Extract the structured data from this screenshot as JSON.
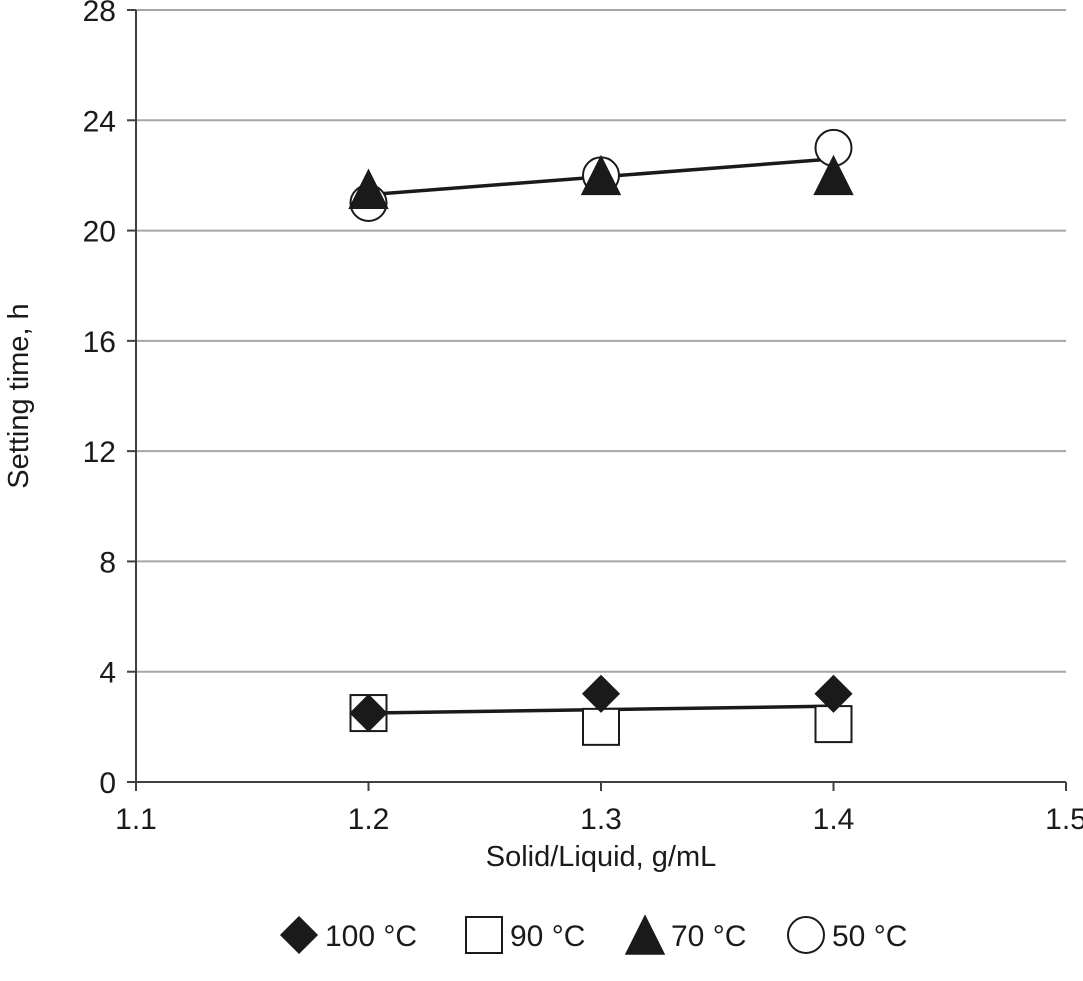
{
  "chart_data": {
    "type": "scatter",
    "title": "",
    "xlabel": "Solid/Liquid, g/mL",
    "ylabel": "Setting time, h",
    "xlim": [
      1.1,
      1.5
    ],
    "ylim": [
      0,
      28
    ],
    "xticks": [
      "1.1",
      "1.2",
      "1.3",
      "1.4",
      "1.5"
    ],
    "yticks": [
      "0",
      "4",
      "8",
      "12",
      "16",
      "20",
      "24",
      "28"
    ],
    "grid": "horizontal",
    "legend_position": "bottom",
    "series": [
      {
        "name": "100 °C",
        "marker": "diamond",
        "fill": "#1a1a1a",
        "x": [
          1.2,
          1.3,
          1.4
        ],
        "y": [
          2.5,
          3.2,
          3.2
        ]
      },
      {
        "name": "90 °C",
        "marker": "square",
        "fill": "#ffffff",
        "x": [
          1.2,
          1.3,
          1.4
        ],
        "y": [
          2.5,
          2.0,
          2.1
        ]
      },
      {
        "name": "70 °C",
        "marker": "triangle",
        "fill": "#1a1a1a",
        "x": [
          1.2,
          1.3,
          1.4
        ],
        "y": [
          21.5,
          22.0,
          22.0
        ]
      },
      {
        "name": "50 °C",
        "marker": "circle",
        "fill": "#ffffff",
        "x": [
          1.2,
          1.3,
          1.4
        ],
        "y": [
          21.0,
          22.0,
          23.0
        ]
      }
    ],
    "trendlines": [
      {
        "x": [
          1.2,
          1.4
        ],
        "y": [
          2.5,
          2.75
        ]
      },
      {
        "x": [
          1.2,
          1.4
        ],
        "y": [
          21.3,
          22.6
        ]
      }
    ],
    "colors": {
      "line": "#1a1a1a",
      "grid": "#a6a6a6",
      "axis": "#404040"
    }
  }
}
